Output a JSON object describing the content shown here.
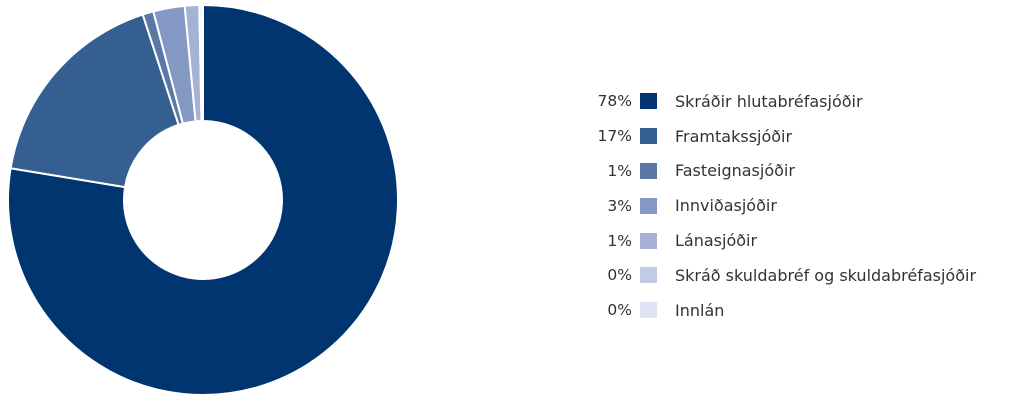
{
  "chart_data": {
    "type": "pie",
    "variant": "donut",
    "start_angle_deg": 0,
    "direction": "clockwise",
    "legend_position": "right",
    "slices": [
      {
        "label": "Skráðir hlutabréfasjóðir",
        "value": 77.6,
        "value_label": "78%",
        "color": "#003570"
      },
      {
        "label": "Framtakssjóðir",
        "value": 17.4,
        "value_label": "17%",
        "color": "#355e91"
      },
      {
        "label": "Fasteignasjóðir",
        "value": 0.9,
        "value_label": "1%",
        "color": "#5b77a6"
      },
      {
        "label": "Innviðasjóðir",
        "value": 2.6,
        "value_label": "3%",
        "color": "#8498c4"
      },
      {
        "label": "Lánasjóðir",
        "value": 1.2,
        "value_label": "1%",
        "color": "#a6b2d4"
      },
      {
        "label": "Skráð skuldabréf og skuldabréfasjóðir",
        "value": 0.2,
        "value_label": "0%",
        "color": "#c3cbe4"
      },
      {
        "label": "Innlán",
        "value": 0.1,
        "value_label": "0%",
        "color": "#dde3f0"
      }
    ]
  }
}
